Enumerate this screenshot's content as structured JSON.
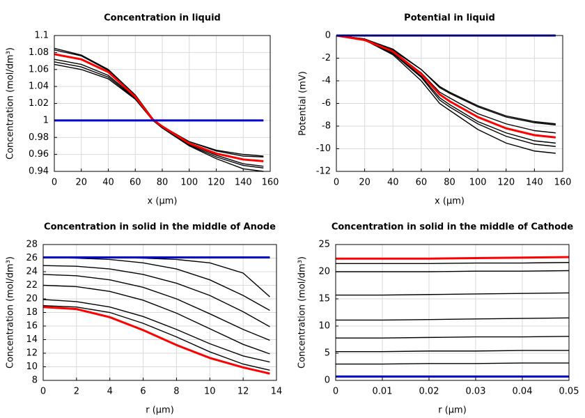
{
  "chart_data": [
    {
      "type": "line",
      "title": "Concentration in liquid",
      "xlabel": "x (µm)",
      "ylabel": "Concentration (mol/dm³)",
      "x": [
        0,
        20,
        40,
        60,
        73,
        80,
        100,
        120,
        140,
        155
      ],
      "series": [
        {
          "color": "#000000",
          "values": [
            1.085,
            1.077,
            1.06,
            1.03,
            1.002,
            0.993,
            0.975,
            0.965,
            0.96,
            0.958
          ]
        },
        {
          "color": "#000000",
          "values": [
            1.083,
            1.076,
            1.059,
            1.03,
            1.002,
            0.993,
            0.975,
            0.964,
            0.958,
            0.957
          ]
        },
        {
          "color": "#000000",
          "values": [
            1.072,
            1.066,
            1.053,
            1.027,
            1.0,
            0.992,
            0.972,
            0.959,
            0.949,
            0.946
          ]
        },
        {
          "color": "#000000",
          "values": [
            1.069,
            1.063,
            1.051,
            1.026,
            1.0,
            0.992,
            0.971,
            0.957,
            0.947,
            0.944
          ]
        },
        {
          "color": "#000000",
          "values": [
            1.066,
            1.06,
            1.049,
            1.025,
            1.0,
            0.991,
            0.97,
            0.955,
            0.943,
            0.94
          ]
        },
        {
          "color": "#ff0000",
          "values": [
            1.078,
            1.072,
            1.057,
            1.028,
            1.001,
            0.993,
            0.973,
            0.961,
            0.954,
            0.952
          ]
        },
        {
          "color": "#0000cc",
          "values": [
            1,
            1,
            1,
            1,
            1,
            1,
            1,
            1,
            1,
            1
          ]
        }
      ],
      "xlim": [
        0,
        160
      ],
      "xticks": [
        0,
        20,
        40,
        60,
        80,
        100,
        120,
        140,
        160
      ],
      "ylim": [
        0.94,
        1.1
      ],
      "yticks": [
        0.94,
        0.96,
        0.98,
        1,
        1.02,
        1.04,
        1.06,
        1.08,
        1.1
      ],
      "grid": true
    },
    {
      "type": "line",
      "title": "Potential in liquid",
      "xlabel": "x (µm)",
      "ylabel": "Potential (mV)",
      "x": [
        0,
        20,
        40,
        60,
        73,
        80,
        100,
        120,
        140,
        155
      ],
      "series": [
        {
          "color": "#000000",
          "values": [
            0,
            -0.3,
            -1.2,
            -3.0,
            -4.5,
            -5.0,
            -6.2,
            -7.1,
            -7.6,
            -7.8
          ]
        },
        {
          "color": "#000000",
          "values": [
            0,
            -0.3,
            -1.3,
            -3.0,
            -4.6,
            -5.1,
            -6.3,
            -7.2,
            -7.7,
            -7.9
          ]
        },
        {
          "color": "#000000",
          "values": [
            0,
            -0.3,
            -1.4,
            -3.3,
            -5.0,
            -5.5,
            -6.9,
            -7.8,
            -8.4,
            -8.6
          ]
        },
        {
          "color": "#000000",
          "values": [
            0,
            -0.4,
            -1.5,
            -3.6,
            -5.5,
            -6.1,
            -7.6,
            -8.6,
            -9.3,
            -9.5
          ]
        },
        {
          "color": "#000000",
          "values": [
            0,
            -0.4,
            -1.6,
            -3.7,
            -5.7,
            -6.3,
            -7.8,
            -8.9,
            -9.6,
            -9.8
          ]
        },
        {
          "color": "#000000",
          "values": [
            0,
            -0.4,
            -1.7,
            -4.0,
            -6.0,
            -6.6,
            -8.3,
            -9.5,
            -10.2,
            -10.4
          ]
        },
        {
          "color": "#ff0000",
          "values": [
            0,
            -0.4,
            -1.4,
            -3.4,
            -5.2,
            -5.8,
            -7.2,
            -8.2,
            -8.8,
            -9.0
          ]
        },
        {
          "color": "#0000cc",
          "values": [
            0,
            0,
            0,
            0,
            0,
            0,
            0,
            0,
            0,
            0
          ]
        }
      ],
      "xlim": [
        0,
        160
      ],
      "xticks": [
        0,
        20,
        40,
        60,
        80,
        100,
        120,
        140,
        160
      ],
      "ylim": [
        -12,
        0
      ],
      "yticks": [
        -12,
        -10,
        -8,
        -6,
        -4,
        -2,
        0
      ],
      "grid": true
    },
    {
      "type": "line",
      "title": "Concentration in solid in the middle of Anode",
      "xlabel": "r (µm)",
      "ylabel": "Concentration (mol/dm³)",
      "x": [
        0,
        2,
        4,
        6,
        8,
        10,
        12,
        13.6
      ],
      "series": [
        {
          "color": "#000000",
          "values": [
            26.1,
            26.1,
            26.1,
            26.0,
            25.8,
            25.3,
            23.8,
            20.3
          ]
        },
        {
          "color": "#000000",
          "values": [
            26.1,
            26.0,
            25.8,
            25.3,
            24.4,
            22.8,
            20.5,
            18.3
          ]
        },
        {
          "color": "#000000",
          "values": [
            24.9,
            24.8,
            24.4,
            23.6,
            22.3,
            20.5,
            18.1,
            15.9
          ]
        },
        {
          "color": "#000000",
          "values": [
            23.6,
            23.4,
            22.8,
            21.7,
            20.0,
            17.8,
            15.5,
            13.9
          ]
        },
        {
          "color": "#000000",
          "values": [
            22.0,
            21.8,
            21.1,
            19.8,
            17.9,
            15.6,
            13.3,
            11.9
          ]
        },
        {
          "color": "#000000",
          "values": [
            19.9,
            19.6,
            18.8,
            17.4,
            15.5,
            13.4,
            11.6,
            10.7
          ]
        },
        {
          "color": "#000000",
          "values": [
            19.0,
            18.8,
            18.0,
            16.4,
            14.4,
            12.2,
            10.4,
            9.5
          ]
        },
        {
          "color": "#ff0000",
          "values": [
            18.8,
            18.5,
            17.3,
            15.4,
            13.2,
            11.3,
            9.9,
            9.0
          ]
        },
        {
          "color": "#0000cc",
          "values": [
            26.1,
            26.1,
            26.1,
            26.1,
            26.1,
            26.1,
            26.1,
            26.1
          ]
        }
      ],
      "xlim": [
        0,
        14
      ],
      "xticks": [
        0,
        2,
        4,
        6,
        8,
        10,
        12,
        14
      ],
      "ylim": [
        8,
        28
      ],
      "yticks": [
        8,
        10,
        12,
        14,
        16,
        18,
        20,
        22,
        24,
        26,
        28
      ],
      "grid": true
    },
    {
      "type": "line",
      "title": "Concentration in solid in the middle of Cathode",
      "xlabel": "r (µm)",
      "ylabel": "Concentration (mol/dm³)",
      "x": [
        0,
        0.01,
        0.02,
        0.03,
        0.04,
        0.05
      ],
      "series": [
        {
          "color": "#000000",
          "values": [
            21.5,
            21.5,
            21.5,
            21.6,
            21.6,
            21.7
          ]
        },
        {
          "color": "#000000",
          "values": [
            20.0,
            20.0,
            20.0,
            20.1,
            20.1,
            20.2
          ]
        },
        {
          "color": "#000000",
          "values": [
            15.7,
            15.7,
            15.8,
            15.9,
            16.0,
            16.1
          ]
        },
        {
          "color": "#000000",
          "values": [
            11.1,
            11.1,
            11.2,
            11.3,
            11.4,
            11.5
          ]
        },
        {
          "color": "#000000",
          "values": [
            7.8,
            7.8,
            7.9,
            8.0,
            8.0,
            8.1
          ]
        },
        {
          "color": "#000000",
          "values": [
            5.3,
            5.3,
            5.4,
            5.4,
            5.5,
            5.5
          ]
        },
        {
          "color": "#000000",
          "values": [
            3.0,
            3.0,
            3.1,
            3.1,
            3.2,
            3.2
          ]
        },
        {
          "color": "#ff0000",
          "values": [
            22.4,
            22.4,
            22.4,
            22.5,
            22.6,
            22.7
          ]
        },
        {
          "color": "#0000cc",
          "values": [
            0.7,
            0.7,
            0.7,
            0.7,
            0.7,
            0.7
          ]
        }
      ],
      "xlim": [
        0,
        0.05
      ],
      "xticks": [
        0,
        0.01,
        0.02,
        0.03,
        0.04,
        0.05
      ],
      "ylim": [
        0,
        25
      ],
      "yticks": [
        0,
        5,
        10,
        15,
        20,
        25
      ],
      "grid": true
    }
  ]
}
